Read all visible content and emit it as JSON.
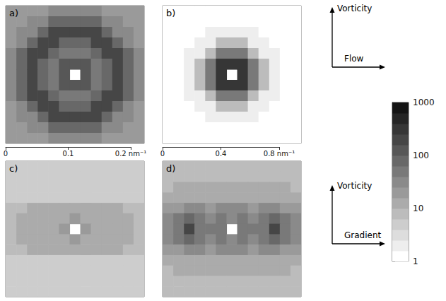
{
  "chart_data": [
    {
      "type": "heatmap",
      "title": "a)",
      "tick_labels": false,
      "cells": [
        [
          20,
          20,
          25,
          25,
          30,
          30,
          30,
          30,
          30,
          25,
          25,
          20,
          20
        ],
        [
          20,
          25,
          30,
          30,
          70,
          70,
          70,
          70,
          70,
          30,
          30,
          25,
          20
        ],
        [
          25,
          30,
          30,
          70,
          200,
          200,
          200,
          200,
          200,
          70,
          30,
          30,
          25
        ],
        [
          25,
          30,
          70,
          200,
          200,
          90,
          90,
          90,
          200,
          200,
          70,
          30,
          25
        ],
        [
          30,
          70,
          200,
          200,
          90,
          60,
          60,
          60,
          90,
          200,
          200,
          70,
          30
        ],
        [
          30,
          70,
          200,
          90,
          60,
          150,
          150,
          150,
          60,
          90,
          200,
          70,
          30
        ],
        [
          30,
          70,
          200,
          90,
          60,
          150,
          null,
          150,
          60,
          90,
          200,
          70,
          30
        ],
        [
          30,
          70,
          200,
          90,
          60,
          150,
          150,
          150,
          60,
          90,
          200,
          70,
          30
        ],
        [
          30,
          70,
          200,
          200,
          90,
          60,
          60,
          60,
          90,
          200,
          200,
          70,
          30
        ],
        [
          25,
          30,
          70,
          200,
          200,
          90,
          90,
          90,
          200,
          200,
          70,
          30,
          25
        ],
        [
          25,
          30,
          30,
          70,
          200,
          200,
          200,
          200,
          200,
          70,
          30,
          30,
          25
        ],
        [
          20,
          25,
          30,
          30,
          70,
          70,
          70,
          70,
          70,
          30,
          30,
          25,
          20
        ],
        [
          20,
          20,
          25,
          25,
          30,
          30,
          30,
          30,
          30,
          25,
          25,
          20,
          20
        ]
      ]
    },
    {
      "type": "heatmap",
      "title": "b)",
      "tick_labels": false,
      "cells": [
        [
          1,
          1,
          1,
          1,
          1,
          1,
          1,
          1,
          1,
          1,
          1,
          1,
          1
        ],
        [
          1,
          1,
          1,
          1,
          1,
          1,
          1,
          1,
          1,
          1,
          1,
          1,
          1
        ],
        [
          1,
          1,
          1,
          1,
          2,
          2,
          2,
          2,
          2,
          1,
          1,
          1,
          1
        ],
        [
          1,
          1,
          1,
          2,
          2,
          8,
          8,
          8,
          2,
          2,
          1,
          1,
          1
        ],
        [
          1,
          1,
          2,
          2,
          8,
          60,
          60,
          60,
          8,
          2,
          2,
          1,
          1
        ],
        [
          1,
          1,
          2,
          8,
          60,
          300,
          300,
          300,
          60,
          8,
          2,
          1,
          1
        ],
        [
          1,
          1,
          2,
          8,
          60,
          300,
          null,
          300,
          60,
          8,
          2,
          1,
          1
        ],
        [
          1,
          1,
          2,
          8,
          60,
          300,
          300,
          300,
          60,
          8,
          2,
          1,
          1
        ],
        [
          1,
          1,
          2,
          2,
          8,
          60,
          60,
          60,
          8,
          2,
          2,
          1,
          1
        ],
        [
          1,
          1,
          1,
          2,
          2,
          8,
          8,
          8,
          2,
          2,
          1,
          1,
          1
        ],
        [
          1,
          1,
          1,
          1,
          2,
          2,
          2,
          2,
          2,
          1,
          1,
          1,
          1
        ],
        [
          1,
          1,
          1,
          1,
          1,
          1,
          1,
          1,
          1,
          1,
          1,
          1,
          1
        ],
        [
          1,
          1,
          1,
          1,
          1,
          1,
          1,
          1,
          1,
          1,
          1,
          1,
          1
        ]
      ]
    },
    {
      "type": "heatmap",
      "title": "c)",
      "tick_labels": false,
      "cells": [
        [
          5,
          4,
          6,
          5,
          4,
          6,
          5,
          4,
          5,
          6,
          4,
          5,
          4
        ],
        [
          4,
          6,
          5,
          4,
          6,
          5,
          4,
          6,
          5,
          4,
          6,
          5,
          6
        ],
        [
          6,
          5,
          4,
          6,
          5,
          4,
          6,
          5,
          4,
          6,
          5,
          4,
          5
        ],
        [
          5,
          6,
          5,
          4,
          6,
          5,
          6,
          5,
          6,
          4,
          5,
          6,
          4
        ],
        [
          8,
          9,
          10,
          12,
          11,
          12,
          13,
          12,
          11,
          12,
          10,
          9,
          8
        ],
        [
          9,
          11,
          12,
          14,
          13,
          15,
          16,
          15,
          13,
          14,
          12,
          11,
          9
        ],
        [
          9,
          12,
          13,
          14,
          15,
          20,
          null,
          20,
          15,
          14,
          13,
          12,
          9
        ],
        [
          9,
          11,
          12,
          14,
          13,
          15,
          16,
          15,
          13,
          14,
          12,
          11,
          9
        ],
        [
          8,
          9,
          10,
          12,
          11,
          12,
          13,
          12,
          11,
          12,
          10,
          9,
          8
        ],
        [
          5,
          4,
          6,
          5,
          6,
          4,
          5,
          6,
          4,
          5,
          6,
          4,
          5
        ],
        [
          4,
          6,
          5,
          4,
          5,
          6,
          4,
          5,
          6,
          4,
          5,
          6,
          4
        ],
        [
          6,
          5,
          4,
          6,
          4,
          5,
          6,
          4,
          5,
          6,
          4,
          5,
          6
        ],
        [
          5,
          4,
          6,
          5,
          6,
          4,
          5,
          6,
          4,
          5,
          6,
          4,
          5
        ]
      ]
    },
    {
      "type": "heatmap",
      "title": "d)",
      "tick_labels": false,
      "cells": [
        [
          7,
          8,
          7,
          8,
          7,
          8,
          7,
          8,
          7,
          8,
          7,
          8,
          7
        ],
        [
          8,
          7,
          8,
          9,
          8,
          9,
          8,
          9,
          8,
          9,
          8,
          7,
          8
        ],
        [
          9,
          10,
          10,
          11,
          10,
          11,
          10,
          11,
          10,
          11,
          10,
          10,
          9
        ],
        [
          12,
          14,
          15,
          15,
          14,
          15,
          14,
          15,
          14,
          15,
          15,
          14,
          12
        ],
        [
          20,
          25,
          30,
          28,
          25,
          28,
          26,
          28,
          25,
          28,
          30,
          25,
          20
        ],
        [
          30,
          45,
          90,
          45,
          35,
          40,
          38,
          40,
          35,
          45,
          90,
          45,
          30
        ],
        [
          35,
          60,
          250,
          60,
          40,
          45,
          null,
          45,
          40,
          60,
          250,
          60,
          35
        ],
        [
          30,
          45,
          90,
          45,
          35,
          40,
          38,
          40,
          35,
          45,
          90,
          45,
          30
        ],
        [
          20,
          25,
          30,
          28,
          25,
          28,
          26,
          28,
          25,
          28,
          30,
          25,
          20
        ],
        [
          12,
          14,
          15,
          15,
          14,
          15,
          14,
          15,
          14,
          15,
          15,
          14,
          12
        ],
        [
          9,
          10,
          10,
          11,
          10,
          11,
          10,
          11,
          10,
          11,
          10,
          10,
          9
        ],
        [
          8,
          7,
          8,
          9,
          8,
          9,
          8,
          9,
          8,
          9,
          8,
          7,
          8
        ],
        [
          7,
          8,
          7,
          8,
          7,
          8,
          7,
          8,
          7,
          8,
          7,
          8,
          7
        ]
      ]
    }
  ],
  "scale_bars": [
    {
      "xlim": [
        0,
        0.2
      ],
      "xticks": [
        0,
        0.1,
        {
          "value": 0.2,
          "label": "0.2 nm⁻¹"
        }
      ]
    },
    {
      "xlim": [
        0,
        0.8
      ],
      "xticks": [
        0,
        0.4,
        {
          "value": 0.8,
          "label": "0.8 nm⁻¹"
        }
      ]
    }
  ],
  "orientation_keys": [
    {
      "vertical": "Vorticity",
      "horizontal": "Flow"
    },
    {
      "vertical": "Vorticity",
      "horizontal": "Gradient"
    }
  ],
  "colorbar": {
    "log": true,
    "range": [
      1,
      1000
    ],
    "ticks": [
      1,
      10,
      100,
      1000
    ],
    "colors": [
      "#ffffff",
      "#141414"
    ]
  }
}
